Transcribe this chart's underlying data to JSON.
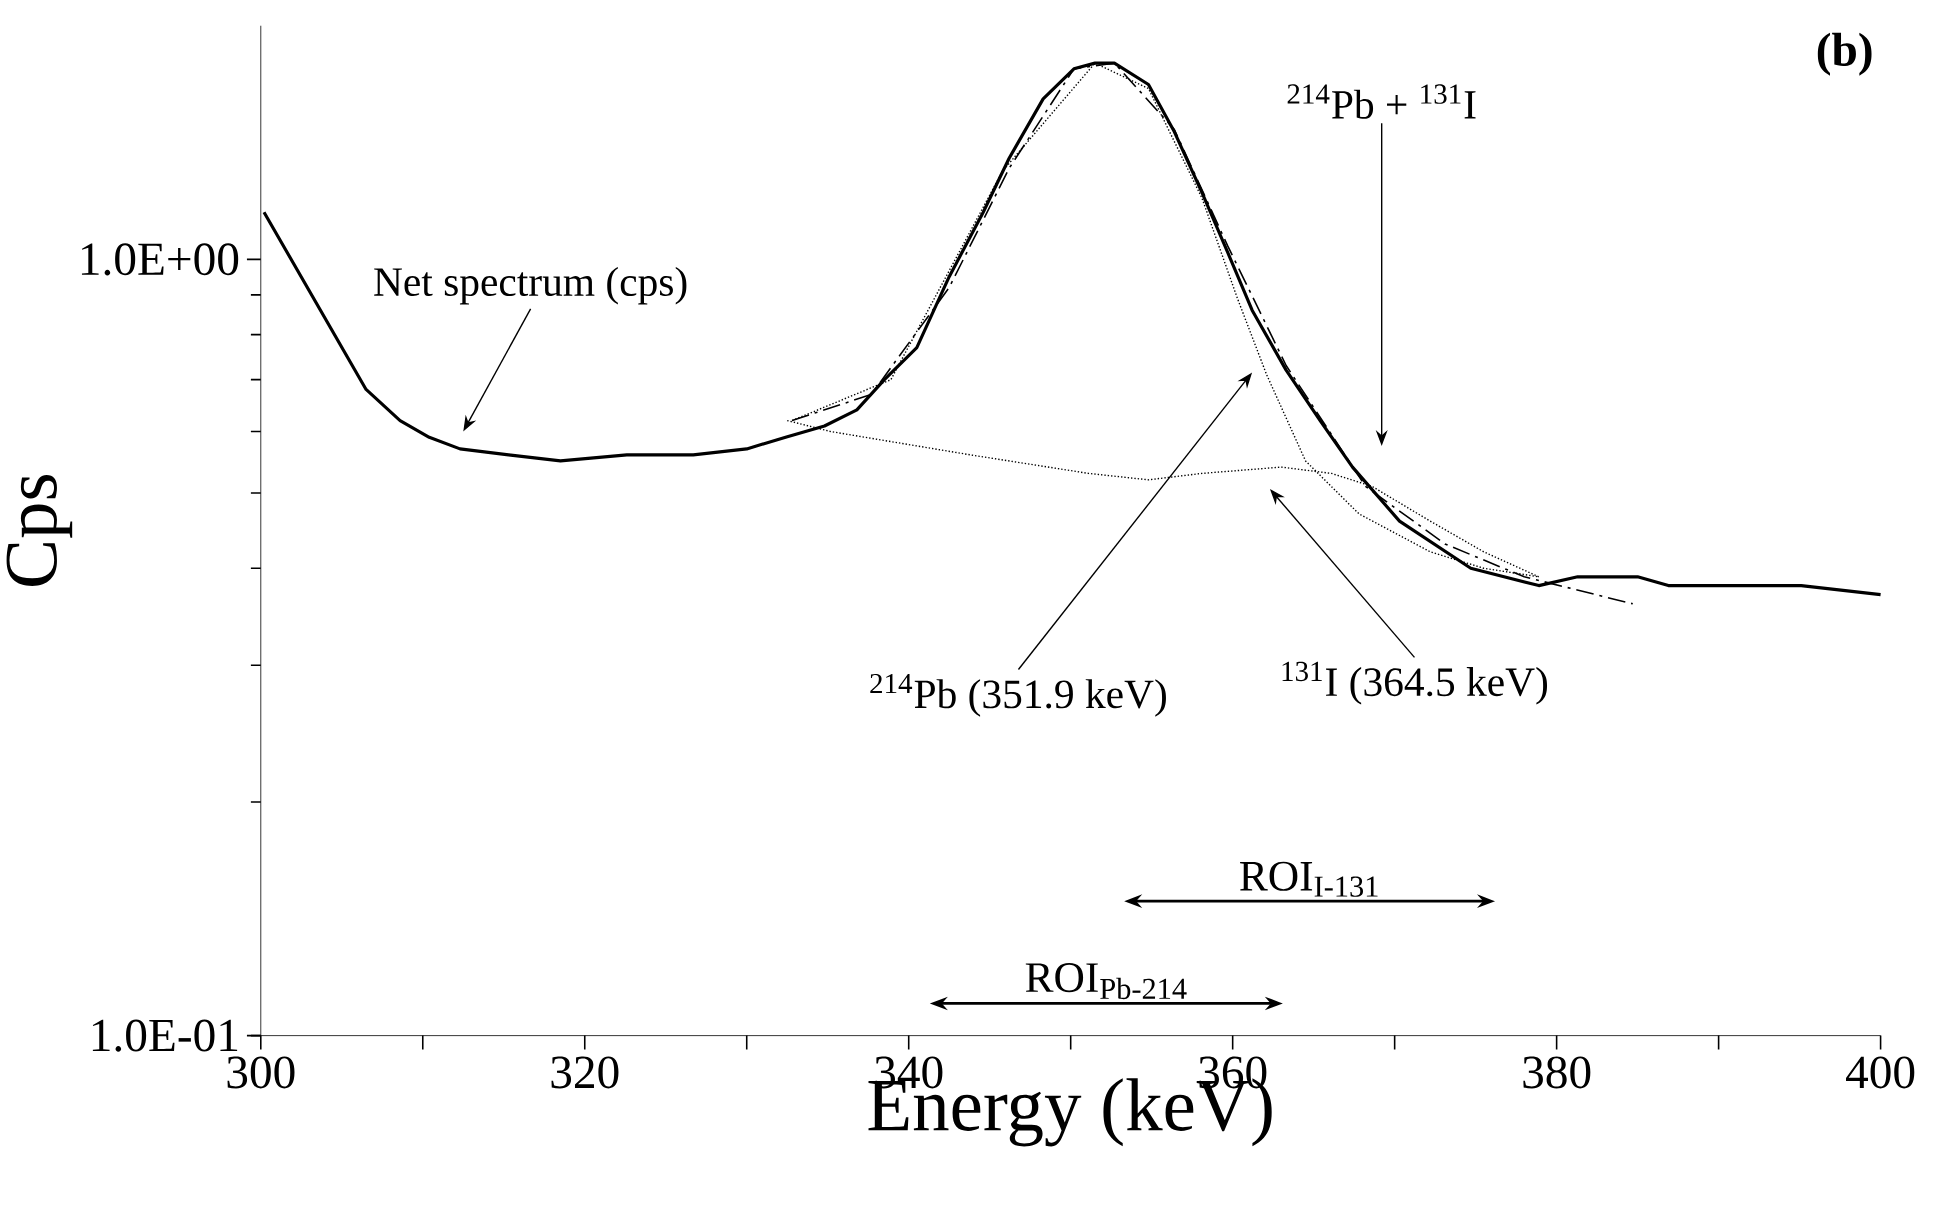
{
  "chart_data": {
    "type": "line",
    "xlabel": "Energy (keV)",
    "ylabel": "Cps",
    "log": "y",
    "grid": false,
    "xlim": [
      300,
      400
    ],
    "ylim": [
      0.1,
      2
    ],
    "xticks": [
      300,
      {
        "value": 310,
        "label": null
      },
      320,
      {
        "value": 330,
        "label": null
      },
      340,
      {
        "value": 350,
        "label": null
      },
      360,
      {
        "value": 370,
        "label": null
      },
      380,
      {
        "value": 390,
        "label": null
      },
      400
    ],
    "yticks": [
      {
        "value": 0.1,
        "label": "1.0E-01"
      },
      {
        "value": 1,
        "label": "1.0E+00"
      }
    ],
    "series": [
      {
        "color": "#000000",
        "line_style": "solid",
        "x": [
          300.2,
          306.5,
          308.6,
          310.4,
          312.3,
          315.3,
          318.5,
          322.6,
          326.7,
          330.0,
          332.4,
          334.8,
          336.8,
          338.5,
          340.5,
          342.5,
          344.6,
          346.2,
          348.3,
          350.2,
          351.5,
          352.7,
          354.8,
          356.4,
          358.1,
          359.7,
          361.2,
          363.3,
          365.4,
          367.4,
          370.3,
          374.7,
          378.9,
          381.3,
          385.0,
          386.9,
          389.4,
          395.1,
          400
        ],
        "values": [
          1.15,
          0.68,
          0.62,
          0.59,
          0.57,
          0.56,
          0.55,
          0.56,
          0.56,
          0.57,
          0.59,
          0.61,
          0.64,
          0.7,
          0.77,
          0.95,
          1.15,
          1.35,
          1.61,
          1.76,
          1.79,
          1.79,
          1.68,
          1.46,
          1.22,
          1.02,
          0.86,
          0.72,
          0.62,
          0.54,
          0.46,
          0.4,
          0.38,
          0.39,
          0.39,
          0.38,
          0.38,
          0.38,
          0.37
        ]
      },
      {
        "color": "#000000",
        "line_style": "dashed",
        "x": [
          332.8,
          337.7,
          342.5,
          346.2,
          350.2,
          352.7,
          356.4,
          359.7,
          363.3,
          368.2,
          373.1,
          378.0,
          384.7
        ],
        "values": [
          0.62,
          0.67,
          0.92,
          1.31,
          1.76,
          1.79,
          1.47,
          1.04,
          0.73,
          0.51,
          0.43,
          0.39,
          0.36
        ]
      },
      {
        "color": "#000000",
        "line_style": "dotted",
        "x": [
          332.8,
          338.9,
          345.8,
          351.5,
          354.8,
          358.1,
          360.3,
          362.1,
          364.5,
          367.8,
          372.2,
          375.5,
          378.9
        ],
        "values": [
          0.62,
          0.7,
          1.3,
          1.79,
          1.66,
          1.2,
          0.89,
          0.71,
          0.55,
          0.47,
          0.42,
          0.4,
          0.39
        ]
      },
      {
        "color": "#000000",
        "line_style": "dotted",
        "x": [
          332.5,
          335.2,
          343.8,
          351.1,
          354.8,
          358.1,
          363.0,
          366.1,
          368.6,
          372.2,
          375.5,
          378.9
        ],
        "values": [
          0.62,
          0.6,
          0.56,
          0.53,
          0.52,
          0.53,
          0.54,
          0.53,
          0.51,
          0.46,
          0.42,
          0.39
        ]
      }
    ],
    "annotations": [
      "Net spectrum (cps)",
      "$^{214}$Pb + $^{131}$I",
      "$^{214}$Pb (351.9 keV)",
      "$^{131}$I (364.5 keV)",
      "(b)",
      "ROI$_{I-131}$",
      "ROI$_{Pb-214}$"
    ]
  }
}
